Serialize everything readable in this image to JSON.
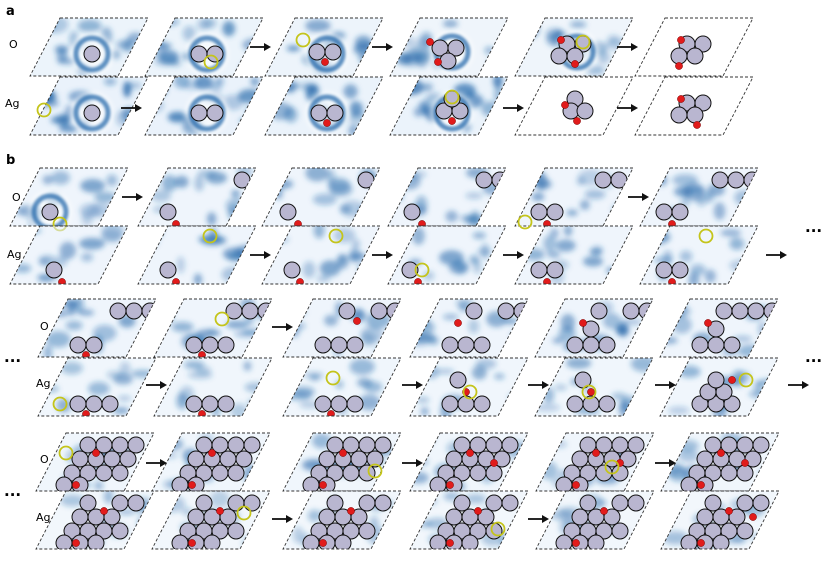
{
  "figure": {
    "panel_a_letter": "a",
    "panel_b_letter": "b",
    "row_label_o": "O",
    "row_label_ag": "Ag",
    "continuation": "...",
    "colors": {
      "heatmap_dark": "#1f64a8",
      "heatmap_light": "#e3eef9",
      "ag_atom_fill": "#b9b6d0",
      "ag_atom_stroke": "#111111",
      "o_atom_fill": "#e11b1b",
      "highlight_ring": "#c4c41a",
      "frame_dash": "#333333"
    },
    "icons": [
      "arrow-right-icon",
      "ellipsis-icon"
    ]
  }
}
